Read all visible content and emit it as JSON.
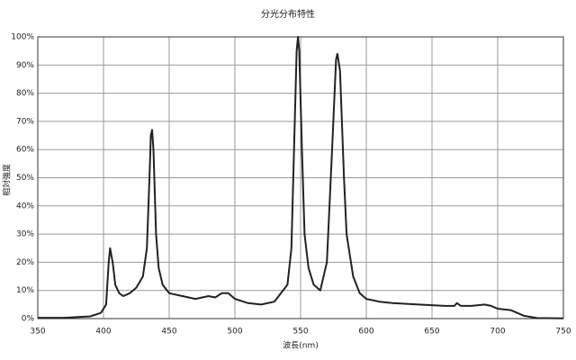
{
  "chart_data": {
    "type": "line",
    "title": "分光分布特性",
    "xlabel": "波長(nm)",
    "ylabel": "相対強度",
    "x": [
      350,
      370,
      390,
      398,
      402,
      404,
      405,
      407,
      409,
      412,
      415,
      420,
      425,
      430,
      433,
      435,
      436,
      437,
      438,
      440,
      442,
      445,
      450,
      460,
      470,
      480,
      485,
      490,
      495,
      500,
      510,
      520,
      530,
      540,
      543,
      545,
      547,
      548,
      549,
      551,
      553,
      556,
      560,
      565,
      570,
      574,
      577,
      578,
      580,
      583,
      585,
      587,
      590,
      595,
      600,
      610,
      620,
      640,
      660,
      667,
      669,
      672,
      680,
      690,
      695,
      700,
      710,
      720,
      730,
      750
    ],
    "series": [
      {
        "name": "相対強度",
        "color": "#222222",
        "values": [
          0.3,
          0.3,
          0.8,
          2,
          5,
          20,
          25,
          20,
          12,
          9,
          8,
          9,
          11,
          15,
          25,
          50,
          65,
          67,
          60,
          30,
          18,
          12,
          9,
          8,
          7,
          8,
          7.5,
          9,
          9,
          7,
          5.5,
          5,
          6,
          12,
          25,
          60,
          95,
          100,
          95,
          60,
          30,
          18,
          12,
          10,
          20,
          60,
          92,
          94,
          88,
          50,
          30,
          24,
          15,
          9,
          7,
          6,
          5.5,
          5,
          4.5,
          4.5,
          5.5,
          4.5,
          4.5,
          5,
          4.5,
          3.5,
          3,
          1,
          0.2,
          0.1
        ]
      }
    ],
    "xlim": [
      350,
      750
    ],
    "xticks": [
      350,
      400,
      450,
      500,
      550,
      600,
      650,
      700,
      750
    ],
    "ylim": [
      0,
      100
    ],
    "yticks": [
      {
        "value": 0,
        "label": "0%"
      },
      {
        "value": 10,
        "label": "10%"
      },
      {
        "value": 20,
        "label": "20%"
      },
      {
        "value": 30,
        "label": "30%"
      },
      {
        "value": 40,
        "label": "40%"
      },
      {
        "value": 50,
        "label": "50%"
      },
      {
        "value": 60,
        "label": "60%"
      },
      {
        "value": 70,
        "label": "70%"
      },
      {
        "value": 80,
        "label": "80%"
      },
      {
        "value": 90,
        "label": "90%"
      },
      {
        "value": 100,
        "label": "100%"
      }
    ],
    "grid": true
  }
}
